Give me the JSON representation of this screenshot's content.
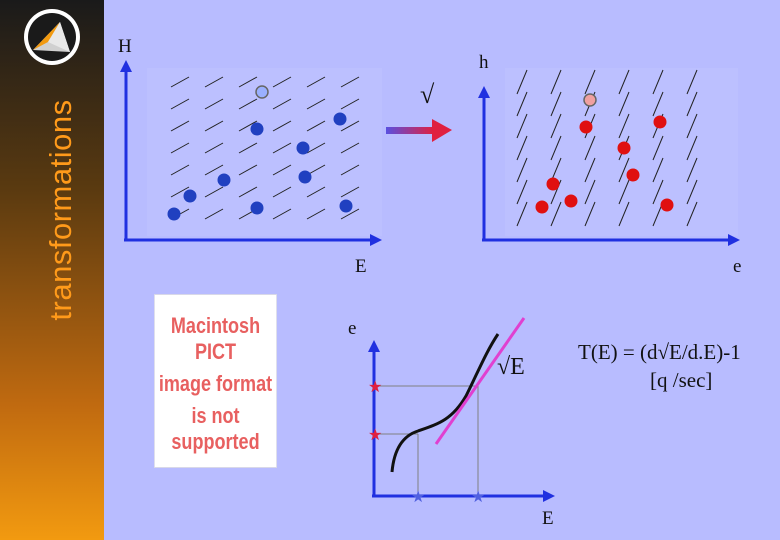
{
  "sidebar": {
    "title": "transformations",
    "logo_icon": "triangle-logo-icon"
  },
  "left_plot": {
    "y_label": "H",
    "x_label": "E",
    "points": [
      [
        262,
        92
      ],
      [
        257,
        129
      ],
      [
        340,
        119
      ],
      [
        303,
        148
      ],
      [
        224,
        180
      ],
      [
        305,
        177
      ],
      [
        190,
        196
      ],
      [
        257,
        208
      ],
      [
        346,
        206
      ],
      [
        174,
        214
      ]
    ],
    "highlight_color": "#9ab0ff",
    "dot_color": "#2040c0"
  },
  "transform": {
    "symbol": "√",
    "arrow_colors": [
      "#5a50e0",
      "#e02040"
    ]
  },
  "right_plot": {
    "y_label": "h",
    "x_label": "e",
    "points": [
      [
        590,
        100
      ],
      [
        586,
        127
      ],
      [
        660,
        122
      ],
      [
        624,
        148
      ],
      [
        553,
        184
      ],
      [
        633,
        175
      ],
      [
        542,
        207
      ],
      [
        571,
        201
      ],
      [
        667,
        205
      ]
    ],
    "highlight_color": "#f0a0a0",
    "dot_color": "#e01010"
  },
  "pict_placeholder": {
    "lines": [
      "Macintosh PICT",
      "image format",
      "is not supported"
    ]
  },
  "curve_plot": {
    "y_label": "e",
    "x_label": "E",
    "curve_label": "√E"
  },
  "formula": {
    "line1": "T(E) = (d√E/d.E)-1",
    "line2": "[q /sec]"
  },
  "colors": {
    "background": "#b8bcff",
    "axis": "#2030e0",
    "tangent": "#e040d0",
    "sidebar_text": "#ff9a1a"
  }
}
